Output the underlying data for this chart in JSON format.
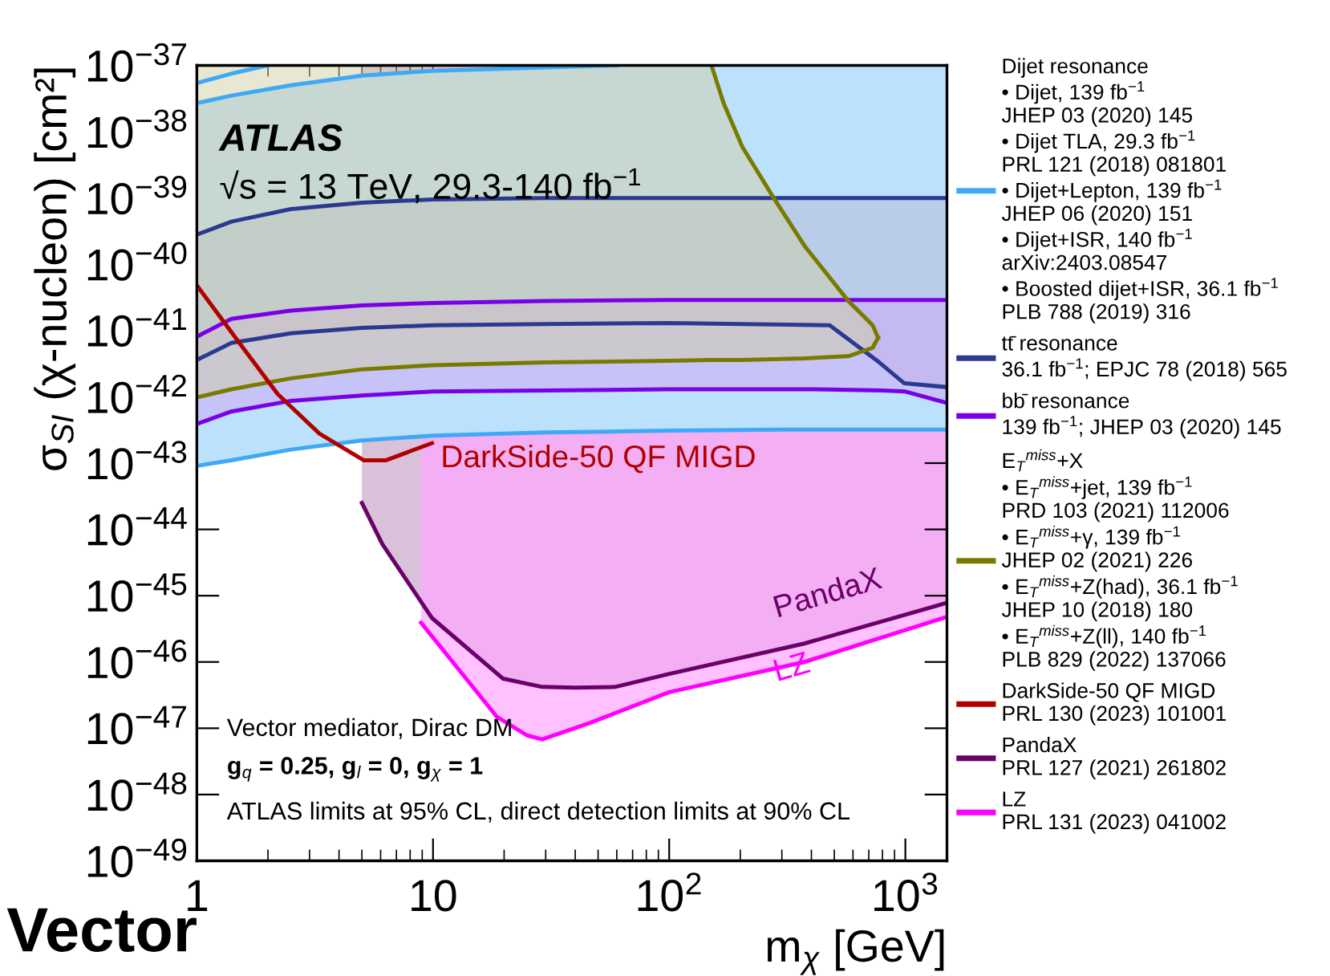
{
  "chart_data": {
    "type": "line",
    "title": "Vector",
    "xlabel": "m$_{χ}$ [GeV]",
    "ylabel": "σ$_{SI}$ (χ-nucleon) [cm²]",
    "log": "xy",
    "xlim": [
      1,
      1500
    ],
    "ylim": [
      1e-49,
      1e-37
    ],
    "xticks": [
      1,
      10,
      {
        "value": 100,
        "label": "10$^{2}$"
      },
      {
        "value": 1000,
        "label": "10$^{3}$"
      }
    ],
    "yticks": [
      {
        "value": 1e-49,
        "label": "10$^{−49}$"
      },
      {
        "value": 1e-48,
        "label": "10$^{−48}$"
      },
      {
        "value": 1e-47,
        "label": "10$^{−47}$"
      },
      {
        "value": 1e-46,
        "label": "10$^{−46}$"
      },
      {
        "value": 1e-45,
        "label": "10$^{−45}$"
      },
      {
        "value": 1e-44,
        "label": "10$^{−44}$"
      },
      {
        "value": 1e-43,
        "label": "10$^{−43}$"
      },
      {
        "value": 1e-42,
        "label": "10$^{−42}$"
      },
      {
        "value": 1e-41,
        "label": "10$^{−41}$"
      },
      {
        "value": 1e-40,
        "label": "10$^{−40}$"
      },
      {
        "value": 1e-39,
        "label": "10$^{−39}$"
      },
      {
        "value": 1e-38,
        "label": "10$^{−38}$"
      },
      {
        "value": 1e-37,
        "label": "10$^{−37}$"
      }
    ],
    "grid": false,
    "legend": "right",
    "series": [
      {
        "name": "Dijet resonance\n• Dijet, 139 fb$^{−1}$\nJHEP 03 (2020) 145\n• Dijet TLA, 29.3 fb$^{−1}$\nPRL 121 (2018) 081801\n• Dijet+Lepton, 139 fb$^{−1}$\nJHEP 06 (2020) 151\n• Dijet+ISR, 140 fb$^{−1}$\narXiv:2403.08547\n• Boosted dijet+ISR, 36.1 fb$^{−1}$\nPLB 788 (2019) 316",
        "color": "#3fa9f5",
        "x": [
          1,
          1.4,
          2.5,
          5,
          10,
          30,
          60,
          100,
          300,
          1000,
          1500
        ],
        "values": [
          9.1e-44,
          1.1e-43,
          1.6e-43,
          2.2e-43,
          2.6e-43,
          2.9e-43,
          3e-43,
          3.1e-43,
          3.2e-43,
          3.2e-43,
          3.2e-43
        ],
        "lower": [
          9.1e-44,
          1.1e-43,
          1.6e-43,
          2.2e-43,
          2.6e-43,
          2.9e-43,
          3e-43,
          3.1e-43,
          3.2e-43,
          3.2e-43,
          3.2e-43
        ],
        "upper": [
          2.7e-38,
          3.5e-38,
          5e-38,
          7e-38,
          8.3e-38,
          9.3e-38,
          1e-37,
          1e-37,
          1e-37,
          1e-37,
          1e-37
        ]
      },
      {
        "color": "#3fa9f5",
        "x": [
          1,
          1.4,
          2.5,
          5,
          10,
          30,
          60
        ],
        "values": [
          2.7e-38,
          3.5e-38,
          5e-38,
          7e-38,
          8.3e-38,
          9.3e-38,
          1e-37
        ]
      },
      {
        "color": "#3fa9f5",
        "x": [
          1,
          1.4,
          2
        ],
        "values": [
          5.4e-38,
          7.5e-38,
          1e-37
        ]
      },
      {
        "color": "#2b3990",
        "x": [
          1,
          1.4,
          2.5,
          5,
          10,
          30,
          100,
          478,
          776,
          990,
          1500
        ],
        "values": [
          2.8e-40,
          4.4e-40,
          6.8e-40,
          8.5e-40,
          9.5e-40,
          1e-39,
          1e-39,
          1e-39,
          1e-39,
          1e-39,
          1e-39
        ]
      },
      {
        "color": "#7a00e6",
        "x": [
          1,
          1.4,
          2.5,
          5,
          10,
          30,
          100,
          400,
          800,
          1000,
          1500
        ],
        "values": [
          8.1e-42,
          1.5e-41,
          2e-41,
          2.4e-41,
          2.6e-41,
          2.8e-41,
          2.9e-41,
          2.9e-41,
          2.9e-41,
          2.9e-41,
          2.9e-41
        ]
      },
      {
        "color": "#7a7a00",
        "x": [
          151,
          170,
          204,
          277,
          374,
          573,
          727,
          766
        ],
        "values": [
          1e-37,
          2.7e-38,
          5.9e-39,
          1e-39,
          1.9e-40,
          2.8e-41,
          1.2e-41,
          7.8e-42
        ]
      },
      {
        "name": "tt̄ resonance\n36.1 fb$^{−1}$; EPJC 78 (2018) 565",
        "color": "#2b3990",
        "x": [
          1,
          1.4,
          2.5,
          5,
          10,
          30,
          100,
          478,
          776,
          990,
          1500
        ],
        "values": [
          3.6e-42,
          6.5e-42,
          9.1e-42,
          1.1e-41,
          1.2e-41,
          1.25e-41,
          1.3e-41,
          1.2e-41,
          3.3e-42,
          1.6e-42,
          1.4e-42
        ],
        "lower": [
          3.6e-42,
          6.5e-42,
          9.1e-42,
          1.1e-41,
          1.2e-41,
          1.25e-41,
          1.3e-41,
          1.2e-41,
          3.3e-42,
          1.6e-42,
          1.4e-42
        ],
        "upper": [
          2.8e-40,
          4.4e-40,
          6.8e-40,
          8.5e-40,
          9.5e-40,
          1e-39,
          1e-39,
          1e-39,
          1e-39,
          1e-39,
          1e-39
        ]
      },
      {
        "name": "bb̄ resonance\n139 fb$^{−1}$; JHEP 03 (2020) 145",
        "color": "#7a00e6",
        "x": [
          1,
          1.4,
          2.5,
          5,
          10,
          30,
          100,
          400,
          800,
          1000,
          1500
        ],
        "values": [
          3.9e-43,
          6e-43,
          8.7e-43,
          1.05e-42,
          1.2e-42,
          1.25e-42,
          1.3e-42,
          1.3e-42,
          1.25e-42,
          1.2e-42,
          8.1e-43
        ],
        "lower": [
          3.9e-43,
          6e-43,
          8.7e-43,
          1.05e-42,
          1.2e-42,
          1.25e-42,
          1.3e-42,
          1.3e-42,
          1.25e-42,
          1.2e-42,
          8.1e-43
        ],
        "upper": [
          8.1e-42,
          1.5e-41,
          2e-41,
          2.4e-41,
          2.6e-41,
          2.8e-41,
          2.9e-41,
          2.9e-41,
          2.9e-41,
          2.9e-41,
          2.9e-41
        ]
      },
      {
        "name": "E$_{T}$$^{miss}$+X\n• E$_{T}$$^{miss}$+jet, 139 fb$^{−1}$\nPRD 103 (2021) 112006\n• E$_{T}$$^{miss}$+γ, 139 fb$^{−1}$\nJHEP 02 (2021) 226\n• E$_{T}$$^{miss}$+Z(had), 36.1 fb$^{−1}$\nJHEP 10 (2018) 180\n• E$_{T}$$^{miss}$+Z(ll), 140 fb$^{−1}$\nPLB 829 (2022) 137066",
        "color": "#7a7a00",
        "x": [
          1,
          1.4,
          2.5,
          5,
          10,
          30,
          100,
          151,
          170,
          204,
          277,
          374,
          573,
          727,
          766
        ],
        "values": [
          9.8e-43,
          1.3e-42,
          1.9e-42,
          2.6e-42,
          3e-42,
          3.3e-42,
          3.5e-42,
          3.6e-42,
          3.6e-42,
          3.6e-42,
          3.7e-42,
          3.8e-42,
          4.1e-42,
          5.5e-42,
          7.8e-42
        ],
        "lower": [
          9.8e-43,
          1.3e-42,
          1.9e-42,
          2.6e-42,
          3e-42,
          3.3e-42,
          3.5e-42,
          3.6e-42,
          3.6e-42,
          3.6e-42,
          3.7e-42,
          3.8e-42,
          4.1e-42,
          5.5e-42,
          7.8e-42
        ],
        "upper": [
          1e-37,
          1e-37,
          1e-37,
          1e-37,
          1e-37,
          1e-37,
          1e-37,
          1e-37,
          2.7e-38,
          5.9e-39,
          1e-39,
          1.9e-40,
          2.8e-41,
          1.2e-41,
          7.8e-42
        ]
      },
      {
        "name": "DarkSide-50 QF MIGD\nPRL 130 (2023) 101001",
        "color": "#b00000",
        "x": [
          1,
          1.6,
          2.2,
          3.3,
          5.1,
          6.3,
          9.9
        ],
        "values": [
          4.8e-41,
          5e-42,
          1.1e-42,
          2.8e-43,
          1.1e-43,
          1.1e-43,
          2e-43
        ]
      },
      {
        "name": "PandaX\nPRL 127 (2021) 261802",
        "color": "#6a006a",
        "x": [
          5,
          6.1,
          9.9,
          19.8,
          29,
          40,
          59,
          100,
          374,
          1500
        ],
        "values": [
          2.5e-44,
          6e-45,
          4.6e-46,
          5.6e-47,
          4.2e-47,
          4.1e-47,
          4.2e-47,
          6.6e-47,
          1.9e-46,
          7.8e-46
        ],
        "lower": [
          2.5e-44,
          6e-45,
          4.6e-46,
          5.6e-47,
          4.2e-47,
          4.1e-47,
          4.2e-47,
          6.6e-47,
          1.9e-46,
          7.8e-46
        ],
        "upper": [
          1e-37,
          1e-37,
          1e-37,
          1e-37,
          1e-37,
          1e-37,
          1e-37,
          1e-37,
          1e-37,
          1e-37
        ]
      },
      {
        "name": "LZ\nPRL 131 (2023) 041002",
        "color": "#ff00ff",
        "x": [
          8.9,
          18.6,
          25,
          29,
          46,
          100,
          374,
          1500
        ],
        "values": [
          3.9e-46,
          1.5e-47,
          7.8e-48,
          6.8e-48,
          1.2e-47,
          3.5e-47,
          1e-46,
          4.8e-46
        ],
        "lower": [
          3.9e-46,
          1.5e-47,
          7.8e-48,
          6.8e-48,
          1.2e-47,
          3.5e-47,
          1e-46,
          4.8e-46
        ],
        "upper": [
          1e-37,
          1e-37,
          1e-37,
          1e-37,
          1e-37,
          1e-37,
          1e-37,
          1e-37
        ]
      }
    ],
    "annotations": [
      "ATLAS",
      "√s = 13 TeV, 29.3-140 fb$^{−1}$",
      "Vector mediator, Dirac DM",
      "g$_{q}$ = 0.25, g$_{l}$ = 0, g$_{χ}$ = 1",
      "ATLAS limits at 95% CL, direct detection limits at 90% CL",
      "DarkSide-50 QF MIGD",
      "PandaX",
      "LZ"
    ]
  }
}
